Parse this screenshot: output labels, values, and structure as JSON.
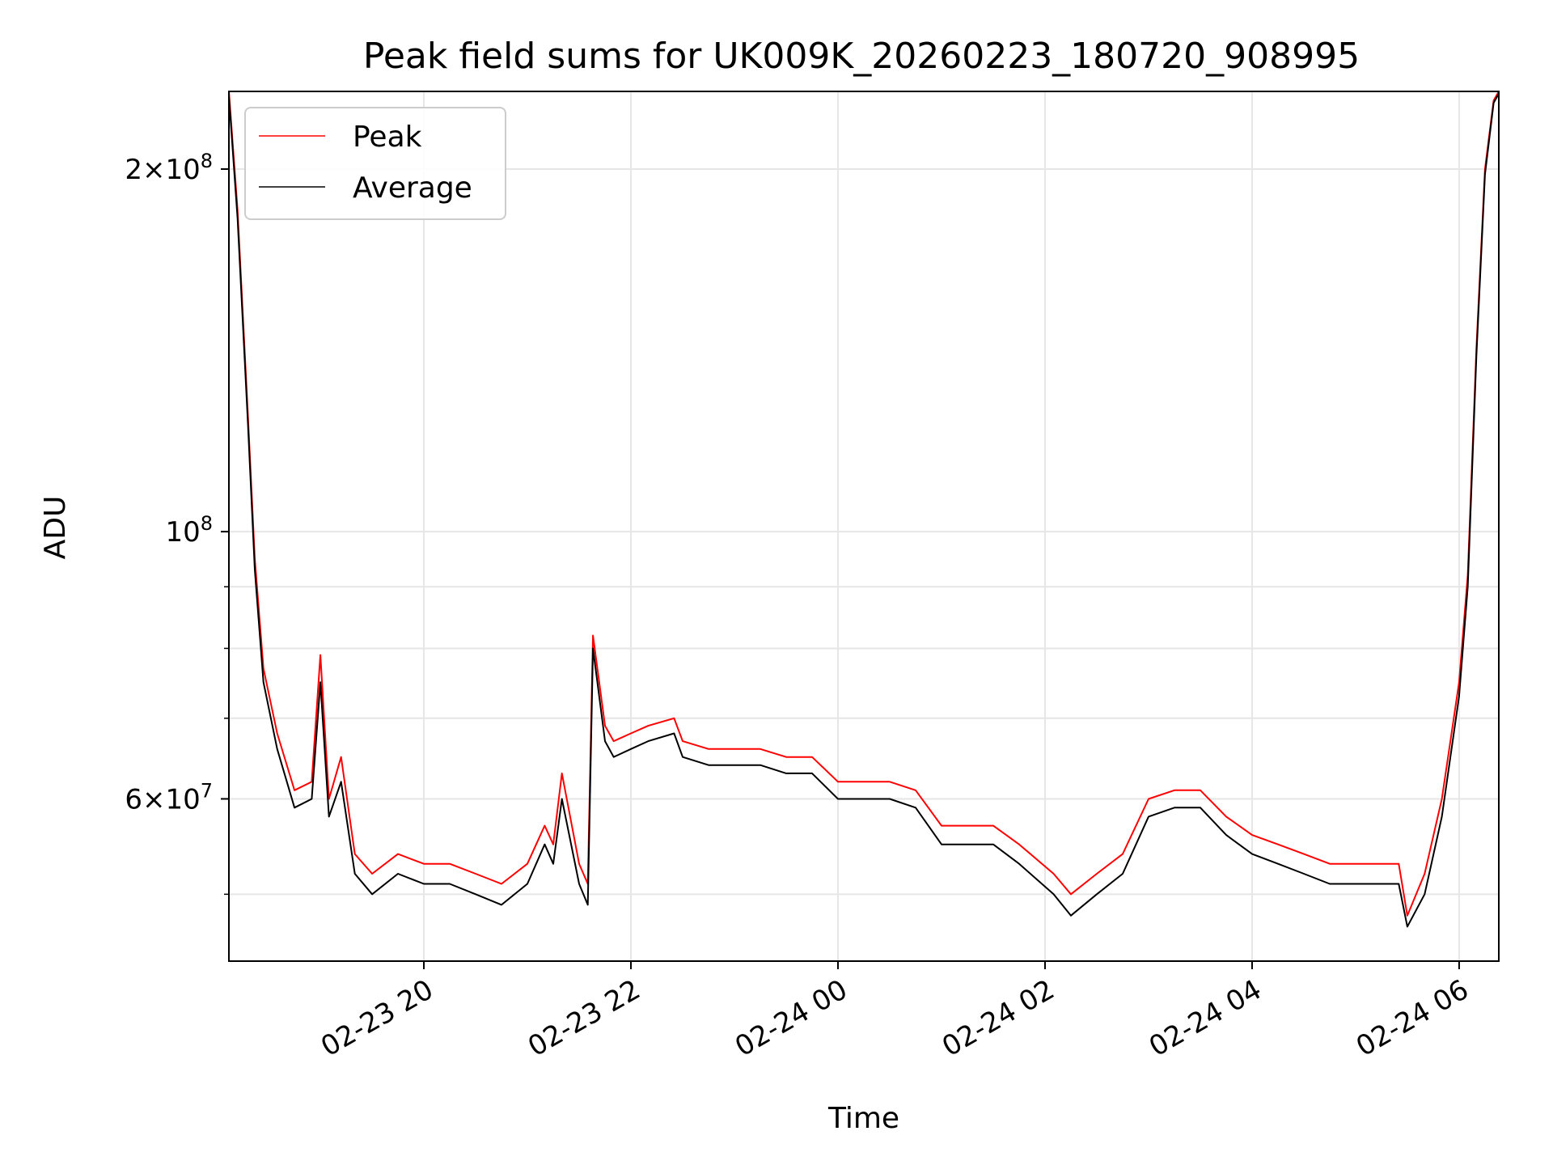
{
  "chart_data": {
    "type": "line",
    "title": "Peak field sums for UK009K_20260223_180720_908995",
    "xlabel": "Time",
    "ylabel": "ADU",
    "yscale": "log",
    "ylim": [
      44000000,
      232000000
    ],
    "xlim": [
      "2026-02-23T18:07",
      "2026-02-24T06:23"
    ],
    "grid": true,
    "legend_position": "upper left",
    "x_tick_labels": [
      "02-23 20",
      "02-23 22",
      "02-24 00",
      "02-24 02",
      "02-24 04",
      "02-24 06"
    ],
    "x_ticks": [
      "2026-02-23T20:00",
      "2026-02-23T22:00",
      "2026-02-24T00:00",
      "2026-02-24T02:00",
      "2026-02-24T04:00",
      "2026-02-24T06:00"
    ],
    "y_tick_labels": [
      {
        "value": 60000000,
        "mantissa": "6",
        "exponent": "7"
      },
      {
        "value": 100000000,
        "mantissa": "",
        "exponent": "8"
      },
      {
        "value": 200000000,
        "mantissa": "2",
        "exponent": "8"
      }
    ],
    "y_minor_ticks": [
      50000000,
      70000000,
      80000000,
      90000000,
      300000000
    ],
    "series": [
      {
        "name": "Peak",
        "color": "#ff0000",
        "x": [
          "2026-02-23T18:07",
          "2026-02-23T18:12",
          "2026-02-23T18:18",
          "2026-02-23T18:22",
          "2026-02-23T18:27",
          "2026-02-23T18:35",
          "2026-02-23T18:45",
          "2026-02-23T18:55",
          "2026-02-23T19:00",
          "2026-02-23T19:05",
          "2026-02-23T19:12",
          "2026-02-23T19:20",
          "2026-02-23T19:30",
          "2026-02-23T19:45",
          "2026-02-23T20:00",
          "2026-02-23T20:15",
          "2026-02-23T20:30",
          "2026-02-23T20:45",
          "2026-02-23T21:00",
          "2026-02-23T21:10",
          "2026-02-23T21:15",
          "2026-02-23T21:20",
          "2026-02-23T21:30",
          "2026-02-23T21:35",
          "2026-02-23T21:38",
          "2026-02-23T21:45",
          "2026-02-23T21:50",
          "2026-02-23T22:00",
          "2026-02-23T22:10",
          "2026-02-23T22:25",
          "2026-02-23T22:30",
          "2026-02-23T22:45",
          "2026-02-23T23:00",
          "2026-02-23T23:15",
          "2026-02-23T23:30",
          "2026-02-23T23:45",
          "2026-02-24T00:00",
          "2026-02-24T00:15",
          "2026-02-24T00:30",
          "2026-02-24T00:45",
          "2026-02-24T01:00",
          "2026-02-24T01:15",
          "2026-02-24T01:30",
          "2026-02-24T01:45",
          "2026-02-24T02:05",
          "2026-02-24T02:15",
          "2026-02-24T02:30",
          "2026-02-24T02:45",
          "2026-02-24T03:00",
          "2026-02-24T03:15",
          "2026-02-24T03:30",
          "2026-02-24T03:45",
          "2026-02-24T04:00",
          "2026-02-24T04:15",
          "2026-02-24T04:30",
          "2026-02-24T04:45",
          "2026-02-24T05:00",
          "2026-02-24T05:15",
          "2026-02-24T05:25",
          "2026-02-24T05:30",
          "2026-02-24T05:40",
          "2026-02-24T05:50",
          "2026-02-24T06:00",
          "2026-02-24T06:05",
          "2026-02-24T06:10",
          "2026-02-24T06:15",
          "2026-02-24T06:20",
          "2026-02-24T06:23"
        ],
        "y": [
          232000000,
          185000000,
          125000000,
          95000000,
          77000000,
          68000000,
          61000000,
          62000000,
          79000000,
          60000000,
          65000000,
          54000000,
          52000000,
          54000000,
          53000000,
          53000000,
          52000000,
          51000000,
          53000000,
          57000000,
          55000000,
          63000000,
          53000000,
          51000000,
          82000000,
          69000000,
          67000000,
          68000000,
          69000000,
          70000000,
          67000000,
          66000000,
          66000000,
          66000000,
          65000000,
          65000000,
          62000000,
          62000000,
          62000000,
          61000000,
          57000000,
          57000000,
          57000000,
          55000000,
          52000000,
          50000000,
          52000000,
          54000000,
          60000000,
          61000000,
          61000000,
          58000000,
          56000000,
          55000000,
          54000000,
          53000000,
          53000000,
          53000000,
          53000000,
          48000000,
          52000000,
          60000000,
          75000000,
          92000000,
          142000000,
          200000000,
          228000000,
          232000000
        ]
      },
      {
        "name": "Average",
        "color": "#000000",
        "x": [
          "2026-02-23T18:07",
          "2026-02-23T18:12",
          "2026-02-23T18:18",
          "2026-02-23T18:22",
          "2026-02-23T18:27",
          "2026-02-23T18:35",
          "2026-02-23T18:45",
          "2026-02-23T18:55",
          "2026-02-23T19:00",
          "2026-02-23T19:05",
          "2026-02-23T19:12",
          "2026-02-23T19:20",
          "2026-02-23T19:30",
          "2026-02-23T19:45",
          "2026-02-23T20:00",
          "2026-02-23T20:15",
          "2026-02-23T20:30",
          "2026-02-23T20:45",
          "2026-02-23T21:00",
          "2026-02-23T21:10",
          "2026-02-23T21:15",
          "2026-02-23T21:20",
          "2026-02-23T21:30",
          "2026-02-23T21:35",
          "2026-02-23T21:38",
          "2026-02-23T21:45",
          "2026-02-23T21:50",
          "2026-02-23T22:00",
          "2026-02-23T22:10",
          "2026-02-23T22:25",
          "2026-02-23T22:30",
          "2026-02-23T22:45",
          "2026-02-23T23:00",
          "2026-02-23T23:15",
          "2026-02-23T23:30",
          "2026-02-23T23:45",
          "2026-02-24T00:00",
          "2026-02-24T00:15",
          "2026-02-24T00:30",
          "2026-02-24T00:45",
          "2026-02-24T01:00",
          "2026-02-24T01:15",
          "2026-02-24T01:30",
          "2026-02-24T01:45",
          "2026-02-24T02:05",
          "2026-02-24T02:15",
          "2026-02-24T02:30",
          "2026-02-24T02:45",
          "2026-02-24T03:00",
          "2026-02-24T03:15",
          "2026-02-24T03:30",
          "2026-02-24T03:45",
          "2026-02-24T04:00",
          "2026-02-24T04:15",
          "2026-02-24T04:30",
          "2026-02-24T04:45",
          "2026-02-24T05:00",
          "2026-02-24T05:15",
          "2026-02-24T05:25",
          "2026-02-24T05:30",
          "2026-02-24T05:40",
          "2026-02-24T05:50",
          "2026-02-24T06:00",
          "2026-02-24T06:05",
          "2026-02-24T06:10",
          "2026-02-24T06:15",
          "2026-02-24T06:20",
          "2026-02-24T06:23"
        ],
        "y": [
          230000000,
          182000000,
          123000000,
          93000000,
          75000000,
          66000000,
          59000000,
          60000000,
          75000000,
          58000000,
          62000000,
          52000000,
          50000000,
          52000000,
          51000000,
          51000000,
          50000000,
          49000000,
          51000000,
          55000000,
          53000000,
          60000000,
          51000000,
          49000000,
          80000000,
          67000000,
          65000000,
          66000000,
          67000000,
          68000000,
          65000000,
          64000000,
          64000000,
          64000000,
          63000000,
          63000000,
          60000000,
          60000000,
          60000000,
          59000000,
          55000000,
          55000000,
          55000000,
          53000000,
          50000000,
          48000000,
          50000000,
          52000000,
          58000000,
          59000000,
          59000000,
          56000000,
          54000000,
          53000000,
          52000000,
          51000000,
          51000000,
          51000000,
          51000000,
          47000000,
          50000000,
          58000000,
          73000000,
          90000000,
          140000000,
          198000000,
          227000000,
          231000000
        ]
      }
    ]
  }
}
